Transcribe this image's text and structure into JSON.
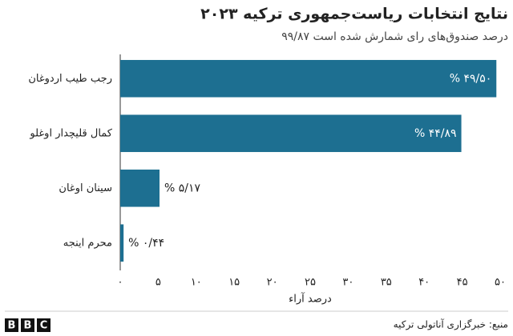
{
  "chart_data": {
    "type": "bar",
    "orientation": "horizontal",
    "title": "نتایج انتخابات ریاست‌جمهوری ترکیه ۲۰۲۳",
    "subtitle": "۹۹/۸۷ درصد صندوق‌های رای شمارش شده است",
    "categories": [
      "رجب طیب اردوغان",
      "کمال قلیچدار اوغلو",
      "سینان اوغان",
      "محرم اینجه"
    ],
    "values": [
      49.5,
      44.89,
      5.17,
      0.44
    ],
    "value_labels": [
      "% ۴۹/۵۰",
      "% ۴۴/۸۹",
      "% ۵/۱۷",
      "% ۰/۴۴"
    ],
    "color": "#1d6f91",
    "xlabel": "درصد آراء",
    "xlim": [
      0,
      50
    ],
    "xticks": [
      {
        "value": 0,
        "label": "۰"
      },
      {
        "value": 5,
        "label": "۵"
      },
      {
        "value": 10,
        "label": "۱۰"
      },
      {
        "value": 15,
        "label": "۱۵"
      },
      {
        "value": 20,
        "label": "۲۰"
      },
      {
        "value": 25,
        "label": "۲۵"
      },
      {
        "value": 30,
        "label": "۳۰"
      },
      {
        "value": 35,
        "label": "۳۵"
      },
      {
        "value": 40,
        "label": "۴۰"
      },
      {
        "value": 45,
        "label": "۴۵"
      },
      {
        "value": 50,
        "label": "۵۰"
      }
    ],
    "grid": false
  },
  "footer": {
    "source": "منبع: خبرگزاری آناتولی ترکیه",
    "logo": [
      "B",
      "B",
      "C"
    ]
  }
}
